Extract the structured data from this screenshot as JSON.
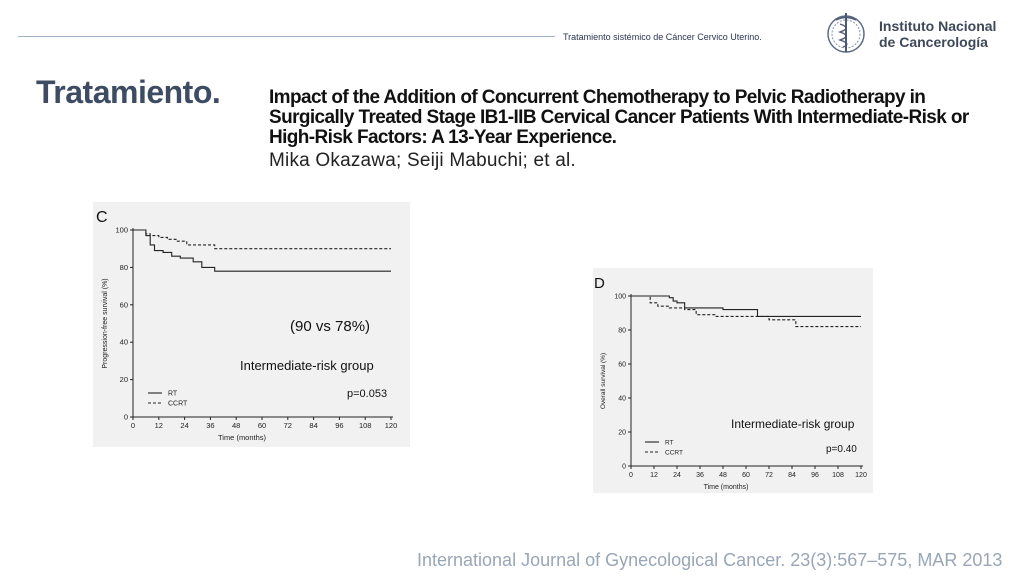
{
  "header": {
    "subtitle": "Tratamiento sistémico  de Cáncer Cervico Uterino.",
    "institution_line1": "Instituto Nacional",
    "institution_line2": "de Cancerología",
    "logo_icon": "caduceus-seal-icon"
  },
  "slide": {
    "title": "Tratamiento.",
    "paper_title": "Impact of the Addition of Concurrent Chemotherapy to Pelvic Radiotherapy in Surgically Treated Stage IB1-IIB Cervical Cancer Patients With Intermediate-Risk or High-Risk Factors: A 13-Year Experience.",
    "authors": "Mika Okazawa; Seiji Mabuchi; et al.",
    "annotation": "(90 vs 78%)",
    "footer": "International Journal of Gynecological Cancer. 23(3):567–575, MAR 2013"
  },
  "chart_data": [
    {
      "type": "line",
      "panel_label": "C",
      "ylabel": "Progression-free survival (%)",
      "xlabel": "Time (months)",
      "group_label": "Intermediate-risk group",
      "p_value": "p=0.053",
      "x_ticks": [
        0,
        12,
        24,
        36,
        48,
        60,
        72,
        84,
        96,
        108,
        120
      ],
      "y_ticks": [
        0,
        20,
        40,
        60,
        80,
        100
      ],
      "xlim": [
        0,
        120
      ],
      "ylim": [
        0,
        100
      ],
      "series": [
        {
          "name": "RT",
          "style": "solid",
          "x": [
            0,
            6,
            8,
            10,
            14,
            18,
            22,
            28,
            32,
            38,
            120
          ],
          "y": [
            100,
            97,
            92,
            89,
            88,
            86,
            85,
            83,
            80,
            78,
            78
          ]
        },
        {
          "name": "CCRT",
          "style": "dashed",
          "x": [
            0,
            6,
            8,
            12,
            16,
            20,
            25,
            38,
            120
          ],
          "y": [
            100,
            98,
            97,
            96,
            95,
            94,
            92,
            90,
            90
          ]
        }
      ]
    },
    {
      "type": "line",
      "panel_label": "D",
      "ylabel": "Overall survival (%)",
      "xlabel": "Time (months)",
      "group_label": "Intermediate-risk group",
      "p_value": "p=0.40",
      "x_ticks": [
        0,
        12,
        24,
        36,
        48,
        60,
        72,
        84,
        96,
        108,
        120
      ],
      "y_ticks": [
        0,
        20,
        40,
        60,
        80,
        100
      ],
      "xlim": [
        0,
        120
      ],
      "ylim": [
        0,
        100
      ],
      "series": [
        {
          "name": "RT",
          "style": "solid",
          "x": [
            0,
            12,
            20,
            22,
            24,
            28,
            48,
            66,
            120
          ],
          "y": [
            100,
            100,
            99,
            97,
            96,
            93,
            92,
            88,
            88
          ]
        },
        {
          "name": "CCRT",
          "style": "dashed",
          "x": [
            0,
            10,
            14,
            20,
            28,
            34,
            44,
            72,
            76,
            86,
            120
          ],
          "y": [
            100,
            96,
            94,
            93,
            92,
            89,
            88,
            86,
            86,
            82,
            82
          ]
        }
      ]
    }
  ]
}
